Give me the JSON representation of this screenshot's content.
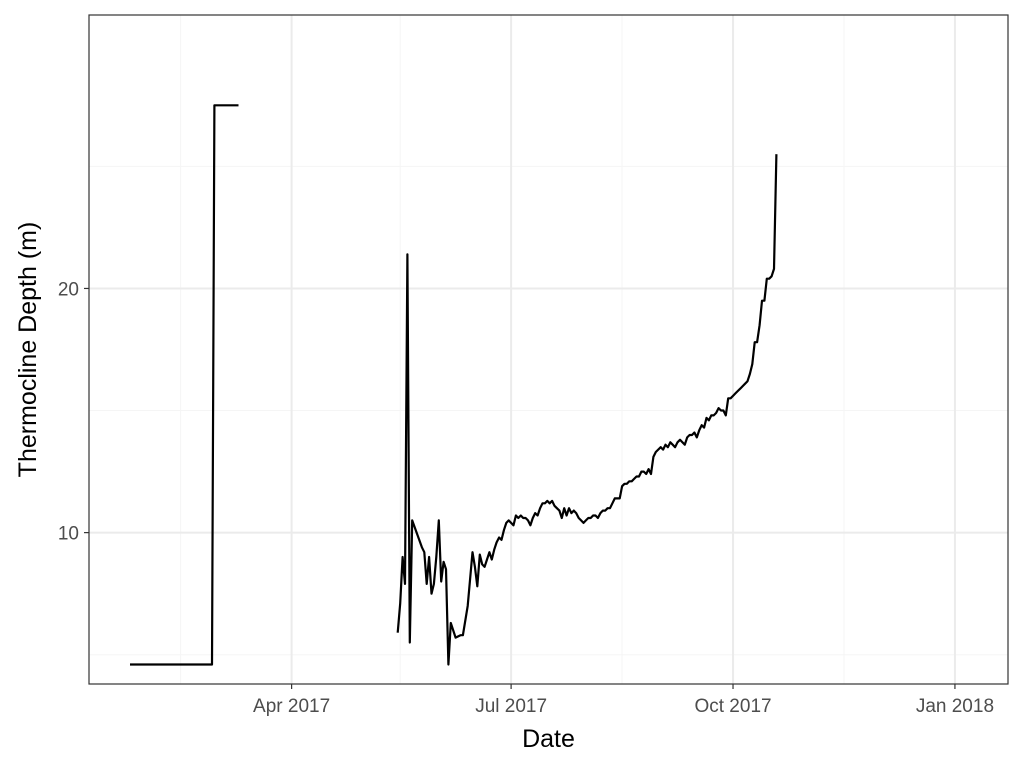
{
  "chart_data": {
    "type": "line",
    "title": "",
    "xlabel": "Date",
    "ylabel": "Thermocline Depth (m)",
    "x_type": "date",
    "xlim": [
      "2017-01-07",
      "2018-01-23"
    ],
    "ylim": [
      3.8,
      31.2
    ],
    "x_ticks": [
      {
        "value": "2017-04-01",
        "label": "Apr 2017"
      },
      {
        "value": "2017-07-01",
        "label": "Jul 2017"
      },
      {
        "value": "2017-10-01",
        "label": "Oct 2017"
      },
      {
        "value": "2018-01-01",
        "label": "Jan 2018"
      }
    ],
    "y_ticks": [
      {
        "value": 10,
        "label": "10"
      },
      {
        "value": 20,
        "label": "20"
      }
    ],
    "x_minor_ticks": [
      "2017-02-14",
      "2017-05-16",
      "2017-08-16",
      "2017-11-16"
    ],
    "y_minor_ticks": [
      5,
      15,
      25
    ],
    "grid": true,
    "legend": "none",
    "colors": {
      "line": "#000000",
      "grid_major": "#ebebeb",
      "grid_minor": "#f5f5f5",
      "panel_border": "#333333"
    },
    "series": [
      {
        "segments": [
          [
            [
              "2017-01-24",
              4.6
            ],
            [
              "2017-02-27",
              4.6
            ],
            [
              "2017-02-28",
              27.5
            ],
            [
              "2017-03-10",
              27.5
            ]
          ],
          [
            [
              "2017-05-15",
              5.9
            ],
            [
              "2017-05-16",
              7.1
            ],
            [
              "2017-05-17",
              9.0
            ],
            [
              "2017-05-18",
              7.9
            ],
            [
              "2017-05-19",
              21.4
            ],
            [
              "2017-05-20",
              5.5
            ],
            [
              "2017-05-21",
              10.5
            ],
            [
              "2017-05-25",
              9.4
            ],
            [
              "2017-05-26",
              9.2
            ],
            [
              "2017-05-27",
              7.9
            ],
            [
              "2017-05-28",
              9.0
            ],
            [
              "2017-05-29",
              7.5
            ],
            [
              "2017-05-30",
              7.9
            ],
            [
              "2017-05-31",
              9.0
            ],
            [
              "2017-06-01",
              10.5
            ],
            [
              "2017-06-02",
              8.0
            ],
            [
              "2017-06-03",
              8.8
            ],
            [
              "2017-06-04",
              8.5
            ],
            [
              "2017-06-05",
              4.6
            ],
            [
              "2017-06-06",
              6.3
            ],
            [
              "2017-06-08",
              5.7
            ],
            [
              "2017-06-10",
              5.8
            ],
            [
              "2017-06-11",
              5.8
            ],
            [
              "2017-06-13",
              7.0
            ],
            [
              "2017-06-15",
              9.2
            ],
            [
              "2017-06-16",
              8.6
            ],
            [
              "2017-06-17",
              7.8
            ],
            [
              "2017-06-18",
              9.1
            ],
            [
              "2017-06-19",
              8.7
            ],
            [
              "2017-06-20",
              8.6
            ],
            [
              "2017-06-21",
              8.9
            ],
            [
              "2017-06-22",
              9.2
            ],
            [
              "2017-06-23",
              8.9
            ],
            [
              "2017-06-24",
              9.3
            ],
            [
              "2017-06-25",
              9.6
            ],
            [
              "2017-06-26",
              9.8
            ],
            [
              "2017-06-27",
              9.7
            ],
            [
              "2017-06-28",
              10.1
            ],
            [
              "2017-06-29",
              10.4
            ],
            [
              "2017-06-30",
              10.5
            ],
            [
              "2017-07-01",
              10.4
            ],
            [
              "2017-07-02",
              10.3
            ],
            [
              "2017-07-03",
              10.7
            ],
            [
              "2017-07-04",
              10.6
            ],
            [
              "2017-07-05",
              10.7
            ],
            [
              "2017-07-06",
              10.6
            ],
            [
              "2017-07-07",
              10.6
            ],
            [
              "2017-07-08",
              10.5
            ],
            [
              "2017-07-09",
              10.3
            ],
            [
              "2017-07-10",
              10.6
            ],
            [
              "2017-07-11",
              10.8
            ],
            [
              "2017-07-12",
              10.7
            ],
            [
              "2017-07-13",
              11.0
            ],
            [
              "2017-07-14",
              11.2
            ],
            [
              "2017-07-15",
              11.2
            ],
            [
              "2017-07-16",
              11.3
            ],
            [
              "2017-07-17",
              11.2
            ],
            [
              "2017-07-18",
              11.3
            ],
            [
              "2017-07-19",
              11.1
            ],
            [
              "2017-07-20",
              11.0
            ],
            [
              "2017-07-21",
              10.9
            ],
            [
              "2017-07-22",
              10.6
            ],
            [
              "2017-07-23",
              11.0
            ],
            [
              "2017-07-24",
              10.7
            ],
            [
              "2017-07-25",
              11.0
            ],
            [
              "2017-07-26",
              10.8
            ],
            [
              "2017-07-27",
              10.9
            ],
            [
              "2017-07-28",
              10.8
            ],
            [
              "2017-07-29",
              10.6
            ],
            [
              "2017-07-30",
              10.5
            ],
            [
              "2017-07-31",
              10.4
            ],
            [
              "2017-08-01",
              10.5
            ],
            [
              "2017-08-02",
              10.6
            ],
            [
              "2017-08-03",
              10.6
            ],
            [
              "2017-08-04",
              10.7
            ],
            [
              "2017-08-05",
              10.7
            ],
            [
              "2017-08-06",
              10.6
            ],
            [
              "2017-08-07",
              10.8
            ],
            [
              "2017-08-08",
              10.9
            ],
            [
              "2017-08-09",
              10.9
            ],
            [
              "2017-08-10",
              11.0
            ],
            [
              "2017-08-11",
              11.0
            ],
            [
              "2017-08-12",
              11.2
            ],
            [
              "2017-08-13",
              11.4
            ],
            [
              "2017-08-14",
              11.4
            ],
            [
              "2017-08-15",
              11.4
            ],
            [
              "2017-08-16",
              11.9
            ],
            [
              "2017-08-17",
              12.0
            ],
            [
              "2017-08-18",
              12.0
            ],
            [
              "2017-08-19",
              12.1
            ],
            [
              "2017-08-20",
              12.1
            ],
            [
              "2017-08-21",
              12.2
            ],
            [
              "2017-08-22",
              12.3
            ],
            [
              "2017-08-23",
              12.3
            ],
            [
              "2017-08-24",
              12.5
            ],
            [
              "2017-08-25",
              12.5
            ],
            [
              "2017-08-26",
              12.4
            ],
            [
              "2017-08-27",
              12.6
            ],
            [
              "2017-08-28",
              12.4
            ],
            [
              "2017-08-29",
              13.1
            ],
            [
              "2017-08-30",
              13.3
            ],
            [
              "2017-08-31",
              13.4
            ],
            [
              "2017-09-01",
              13.5
            ],
            [
              "2017-09-02",
              13.4
            ],
            [
              "2017-09-03",
              13.6
            ],
            [
              "2017-09-04",
              13.5
            ],
            [
              "2017-09-05",
              13.7
            ],
            [
              "2017-09-06",
              13.6
            ],
            [
              "2017-09-07",
              13.5
            ],
            [
              "2017-09-08",
              13.7
            ],
            [
              "2017-09-09",
              13.8
            ],
            [
              "2017-09-10",
              13.7
            ],
            [
              "2017-09-11",
              13.6
            ],
            [
              "2017-09-12",
              13.9
            ],
            [
              "2017-09-13",
              14.0
            ],
            [
              "2017-09-14",
              14.0
            ],
            [
              "2017-09-15",
              14.1
            ],
            [
              "2017-09-16",
              13.9
            ],
            [
              "2017-09-17",
              14.2
            ],
            [
              "2017-09-18",
              14.4
            ],
            [
              "2017-09-19",
              14.3
            ],
            [
              "2017-09-20",
              14.7
            ],
            [
              "2017-09-21",
              14.6
            ],
            [
              "2017-09-22",
              14.8
            ],
            [
              "2017-09-23",
              14.8
            ],
            [
              "2017-09-24",
              14.9
            ],
            [
              "2017-09-25",
              15.1
            ],
            [
              "2017-09-26",
              15.0
            ],
            [
              "2017-09-27",
              15.0
            ],
            [
              "2017-09-28",
              14.8
            ],
            [
              "2017-09-29",
              15.5
            ],
            [
              "2017-09-30",
              15.5
            ],
            [
              "2017-10-01",
              15.6
            ],
            [
              "2017-10-02",
              15.7
            ],
            [
              "2017-10-03",
              15.8
            ],
            [
              "2017-10-04",
              15.9
            ],
            [
              "2017-10-05",
              16.0
            ],
            [
              "2017-10-06",
              16.1
            ],
            [
              "2017-10-07",
              16.2
            ],
            [
              "2017-10-08",
              16.5
            ],
            [
              "2017-10-09",
              16.9
            ],
            [
              "2017-10-10",
              17.8
            ],
            [
              "2017-10-11",
              17.8
            ],
            [
              "2017-10-12",
              18.5
            ],
            [
              "2017-10-13",
              19.5
            ],
            [
              "2017-10-14",
              19.5
            ],
            [
              "2017-10-15",
              20.4
            ],
            [
              "2017-10-16",
              20.4
            ],
            [
              "2017-10-17",
              20.5
            ],
            [
              "2017-10-18",
              20.8
            ],
            [
              "2017-10-19",
              25.5
            ]
          ]
        ]
      }
    ]
  }
}
